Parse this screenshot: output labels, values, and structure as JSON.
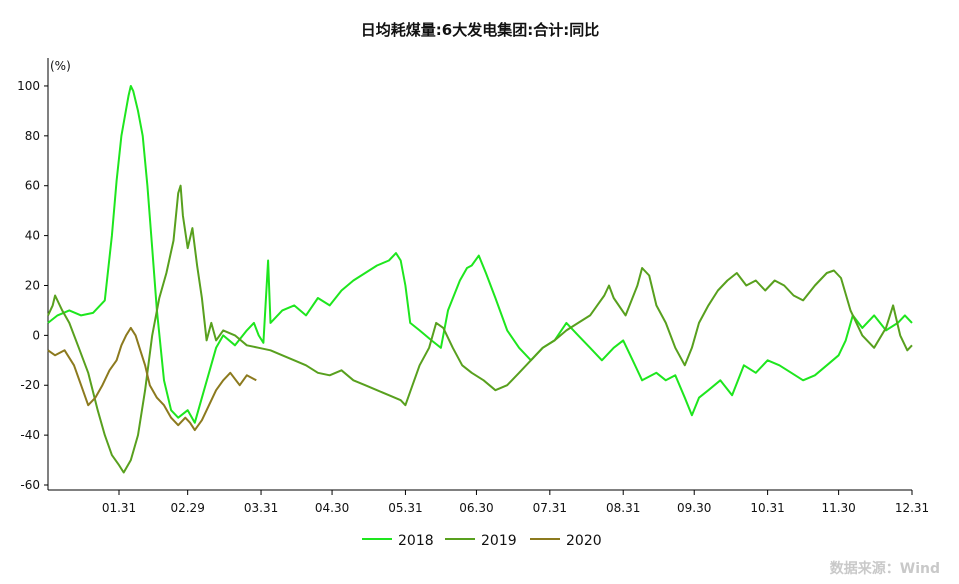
{
  "chart_data": {
    "type": "line",
    "title": "日均耗煤量:6大发电集团:合计:同比",
    "y_unit_label": "(%)",
    "ylim": [
      -62,
      108
    ],
    "y_ticks": [
      100,
      80,
      60,
      40,
      20,
      0,
      -20,
      -40,
      -60
    ],
    "y_tick_labels": [
      "100",
      "80",
      "60",
      "40",
      "20",
      "0",
      "-20",
      "-40",
      "-60"
    ],
    "x_ticks": [
      "01.31",
      "02.29",
      "03.31",
      "04.30",
      "05.31",
      "06.30",
      "07.31",
      "08.31",
      "09.30",
      "10.31",
      "11.30",
      "12.31"
    ],
    "x_tick_days": [
      31,
      60,
      91,
      121,
      152,
      182,
      213,
      244,
      274,
      305,
      335,
      366
    ],
    "x_range_days": [
      1,
      366
    ],
    "grid": false,
    "legend_position": "bottom",
    "source_note": "数据来源：Wind",
    "series": [
      {
        "name": "2018",
        "color": "#1ee61e",
        "points": [
          [
            1,
            5
          ],
          [
            5,
            8
          ],
          [
            10,
            10
          ],
          [
            15,
            8
          ],
          [
            20,
            9
          ],
          [
            25,
            14
          ],
          [
            28,
            40
          ],
          [
            30,
            62
          ],
          [
            32,
            80
          ],
          [
            35,
            96
          ],
          [
            36,
            100
          ],
          [
            37,
            98
          ],
          [
            39,
            90
          ],
          [
            41,
            80
          ],
          [
            43,
            60
          ],
          [
            45,
            35
          ],
          [
            47,
            10
          ],
          [
            50,
            -18
          ],
          [
            53,
            -30
          ],
          [
            56,
            -33
          ],
          [
            60,
            -30
          ],
          [
            63,
            -35
          ],
          [
            66,
            -25
          ],
          [
            69,
            -15
          ],
          [
            72,
            -5
          ],
          [
            75,
            0
          ],
          [
            80,
            -4
          ],
          [
            85,
            2
          ],
          [
            88,
            5
          ],
          [
            90,
            0
          ],
          [
            92,
            -3
          ],
          [
            94,
            30
          ],
          [
            95,
            5
          ],
          [
            100,
            10
          ],
          [
            105,
            12
          ],
          [
            110,
            8
          ],
          [
            115,
            15
          ],
          [
            120,
            12
          ],
          [
            125,
            18
          ],
          [
            130,
            22
          ],
          [
            135,
            25
          ],
          [
            140,
            28
          ],
          [
            145,
            30
          ],
          [
            148,
            33
          ],
          [
            150,
            30
          ],
          [
            152,
            20
          ],
          [
            154,
            5
          ],
          [
            158,
            2
          ],
          [
            163,
            -2
          ],
          [
            167,
            -5
          ],
          [
            170,
            10
          ],
          [
            175,
            22
          ],
          [
            178,
            27
          ],
          [
            180,
            28
          ],
          [
            183,
            32
          ],
          [
            186,
            25
          ],
          [
            190,
            15
          ],
          [
            195,
            2
          ],
          [
            200,
            -5
          ],
          [
            205,
            -10
          ],
          [
            210,
            -5
          ],
          [
            215,
            -2
          ],
          [
            220,
            5
          ],
          [
            225,
            0
          ],
          [
            230,
            -5
          ],
          [
            235,
            -10
          ],
          [
            240,
            -5
          ],
          [
            244,
            -2
          ],
          [
            248,
            -10
          ],
          [
            252,
            -18
          ],
          [
            258,
            -15
          ],
          [
            262,
            -18
          ],
          [
            266,
            -16
          ],
          [
            270,
            -25
          ],
          [
            273,
            -32
          ],
          [
            276,
            -25
          ],
          [
            280,
            -22
          ],
          [
            285,
            -18
          ],
          [
            290,
            -24
          ],
          [
            295,
            -12
          ],
          [
            300,
            -15
          ],
          [
            305,
            -10
          ],
          [
            310,
            -12
          ],
          [
            315,
            -15
          ],
          [
            320,
            -18
          ],
          [
            325,
            -16
          ],
          [
            330,
            -12
          ],
          [
            335,
            -8
          ],
          [
            338,
            -2
          ],
          [
            341,
            8
          ],
          [
            345,
            3
          ],
          [
            350,
            8
          ],
          [
            355,
            2
          ],
          [
            360,
            5
          ],
          [
            363,
            8
          ],
          [
            366,
            5
          ]
        ]
      },
      {
        "name": "2019",
        "color": "#58a01e",
        "points": [
          [
            1,
            8
          ],
          [
            3,
            12
          ],
          [
            4,
            16
          ],
          [
            7,
            10
          ],
          [
            10,
            5
          ],
          [
            14,
            -5
          ],
          [
            18,
            -15
          ],
          [
            22,
            -30
          ],
          [
            25,
            -40
          ],
          [
            28,
            -48
          ],
          [
            31,
            -52
          ],
          [
            33,
            -55
          ],
          [
            36,
            -50
          ],
          [
            39,
            -40
          ],
          [
            42,
            -22
          ],
          [
            45,
            0
          ],
          [
            48,
            15
          ],
          [
            51,
            25
          ],
          [
            54,
            38
          ],
          [
            56,
            57
          ],
          [
            57,
            60
          ],
          [
            58,
            48
          ],
          [
            60,
            35
          ],
          [
            62,
            43
          ],
          [
            64,
            28
          ],
          [
            66,
            15
          ],
          [
            68,
            -2
          ],
          [
            70,
            5
          ],
          [
            72,
            -2
          ],
          [
            75,
            2
          ],
          [
            80,
            0
          ],
          [
            85,
            -4
          ],
          [
            90,
            -5
          ],
          [
            95,
            -6
          ],
          [
            100,
            -8
          ],
          [
            105,
            -10
          ],
          [
            110,
            -12
          ],
          [
            115,
            -15
          ],
          [
            120,
            -16
          ],
          [
            125,
            -14
          ],
          [
            130,
            -18
          ],
          [
            135,
            -20
          ],
          [
            140,
            -22
          ],
          [
            145,
            -24
          ],
          [
            150,
            -26
          ],
          [
            152,
            -28
          ],
          [
            155,
            -20
          ],
          [
            158,
            -12
          ],
          [
            162,
            -5
          ],
          [
            165,
            5
          ],
          [
            168,
            3
          ],
          [
            172,
            -5
          ],
          [
            176,
            -12
          ],
          [
            180,
            -15
          ],
          [
            185,
            -18
          ],
          [
            190,
            -22
          ],
          [
            195,
            -20
          ],
          [
            200,
            -15
          ],
          [
            205,
            -10
          ],
          [
            210,
            -5
          ],
          [
            215,
            -2
          ],
          [
            220,
            2
          ],
          [
            225,
            5
          ],
          [
            230,
            8
          ],
          [
            233,
            12
          ],
          [
            236,
            16
          ],
          [
            238,
            20
          ],
          [
            240,
            15
          ],
          [
            245,
            8
          ],
          [
            250,
            20
          ],
          [
            252,
            27
          ],
          [
            255,
            24
          ],
          [
            258,
            12
          ],
          [
            262,
            5
          ],
          [
            266,
            -5
          ],
          [
            270,
            -12
          ],
          [
            273,
            -5
          ],
          [
            276,
            5
          ],
          [
            280,
            12
          ],
          [
            284,
            18
          ],
          [
            288,
            22
          ],
          [
            292,
            25
          ],
          [
            296,
            20
          ],
          [
            300,
            22
          ],
          [
            304,
            18
          ],
          [
            308,
            22
          ],
          [
            312,
            20
          ],
          [
            316,
            16
          ],
          [
            320,
            14
          ],
          [
            325,
            20
          ],
          [
            330,
            25
          ],
          [
            333,
            26
          ],
          [
            336,
            23
          ],
          [
            340,
            10
          ],
          [
            345,
            0
          ],
          [
            350,
            -5
          ],
          [
            355,
            3
          ],
          [
            358,
            12
          ],
          [
            361,
            0
          ],
          [
            364,
            -6
          ],
          [
            366,
            -4
          ]
        ]
      },
      {
        "name": "2020",
        "color": "#8c7a1e",
        "points": [
          [
            1,
            -6
          ],
          [
            4,
            -8
          ],
          [
            8,
            -6
          ],
          [
            12,
            -12
          ],
          [
            15,
            -20
          ],
          [
            18,
            -28
          ],
          [
            21,
            -25
          ],
          [
            24,
            -20
          ],
          [
            27,
            -14
          ],
          [
            30,
            -10
          ],
          [
            32,
            -4
          ],
          [
            34,
            0
          ],
          [
            36,
            3
          ],
          [
            38,
            0
          ],
          [
            40,
            -6
          ],
          [
            42,
            -12
          ],
          [
            44,
            -20
          ],
          [
            47,
            -25
          ],
          [
            50,
            -28
          ],
          [
            53,
            -33
          ],
          [
            56,
            -36
          ],
          [
            59,
            -33
          ],
          [
            61,
            -35
          ],
          [
            63,
            -38
          ],
          [
            66,
            -34
          ],
          [
            69,
            -28
          ],
          [
            72,
            -22
          ],
          [
            75,
            -18
          ],
          [
            78,
            -15
          ],
          [
            82,
            -20
          ],
          [
            85,
            -16
          ],
          [
            89,
            -18
          ]
        ]
      }
    ]
  }
}
